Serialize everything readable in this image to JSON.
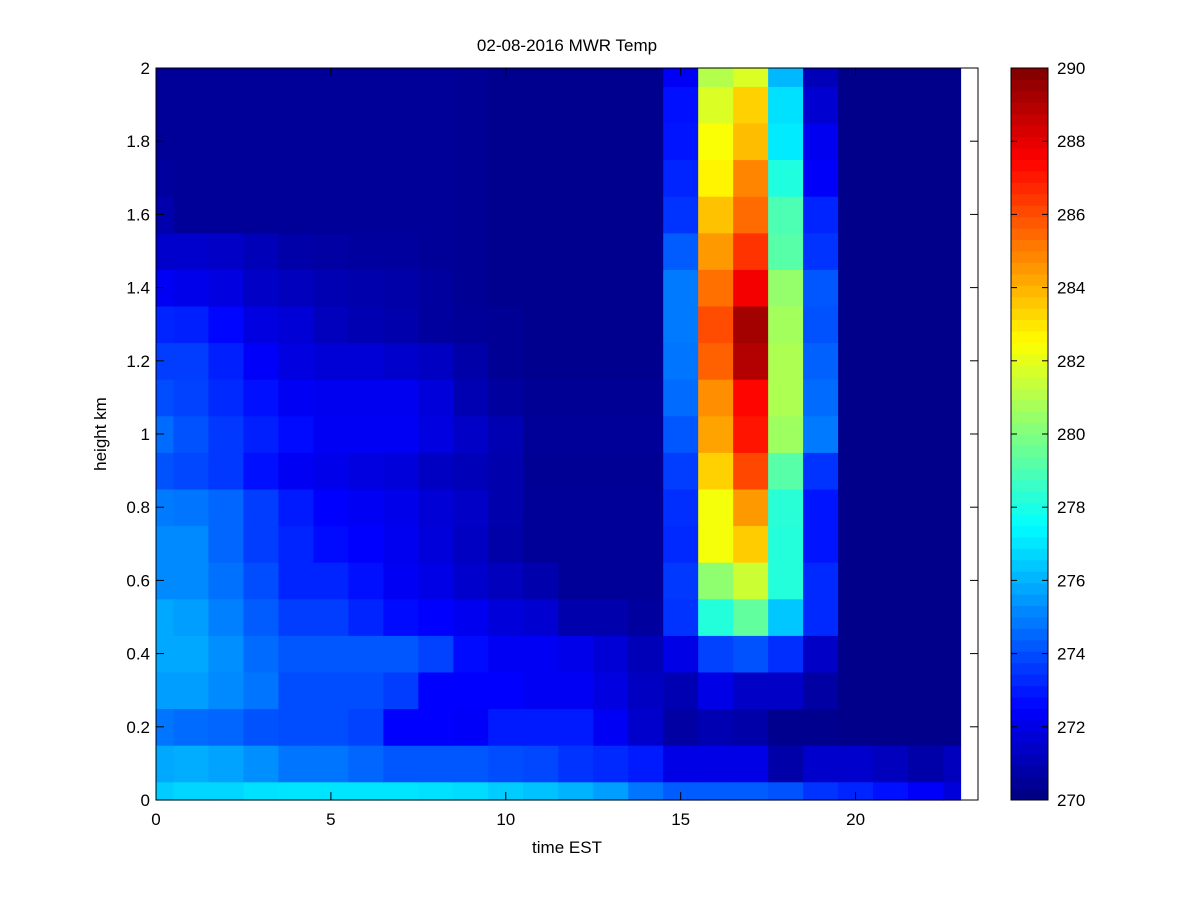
{
  "chart_data": {
    "type": "heatmap",
    "title": "02-08-2016 MWR Temp",
    "xlabel": "time EST",
    "ylabel": "height km",
    "xlim": [
      0,
      23.5
    ],
    "ylim": [
      0,
      2
    ],
    "xticks": [
      0,
      5,
      10,
      15,
      20
    ],
    "xtick_labels": [
      "0",
      "5",
      "10",
      "15",
      "20"
    ],
    "yticks": [
      0,
      0.2,
      0.4,
      0.6,
      0.8,
      1,
      1.2,
      1.4,
      1.6,
      1.8,
      2
    ],
    "ytick_labels": [
      "0",
      "0.2",
      "0.4",
      "0.6",
      "0.8",
      "1",
      "1.2",
      "1.4",
      "1.6",
      "1.8",
      "2"
    ],
    "colormap": "jet",
    "clim": [
      270,
      290
    ],
    "colorbar_ticks": [
      270,
      272,
      274,
      276,
      278,
      280,
      282,
      284,
      286,
      288,
      290
    ],
    "colorbar_tick_labels": [
      "270",
      "272",
      "274",
      "276",
      "278",
      "280",
      "282",
      "284",
      "286",
      "288",
      "290"
    ],
    "x_edges": [
      0,
      1,
      2,
      3,
      4,
      5,
      6,
      7,
      8,
      9,
      10,
      11,
      12,
      13,
      14,
      15,
      16,
      17,
      18,
      19,
      20,
      21,
      22,
      23,
      23.5
    ],
    "y_edges": [
      0,
      0.05,
      0.15,
      0.25,
      0.35,
      0.45,
      0.55,
      0.65,
      0.75,
      0.85,
      0.95,
      1.05,
      1.15,
      1.25,
      1.35,
      1.45,
      1.55,
      1.65,
      1.75,
      1.85,
      1.95,
      2.0
    ],
    "cell_x_offset": -0.5,
    "missing_columns_note": "",
    "values": [
      [
        276.5,
        276.7,
        276.7,
        276.9,
        277.0,
        277.0,
        277.0,
        277.0,
        276.9,
        276.8,
        276.5,
        276.3,
        276.0,
        275.6,
        274.8,
        274.3,
        274.3,
        274.3,
        274.1,
        273.5,
        273.2,
        272.8,
        272.4,
        271.8
      ],
      [
        275.8,
        275.9,
        275.7,
        275.3,
        274.8,
        274.8,
        274.5,
        274.2,
        274.2,
        274.2,
        274.0,
        273.9,
        273.5,
        273.3,
        273.0,
        272.0,
        272.0,
        272.0,
        270.8,
        271.5,
        271.5,
        271.2,
        270.8,
        271.2
      ],
      [
        274.8,
        274.6,
        274.5,
        274.1,
        274.0,
        274.0,
        273.8,
        272.5,
        272.5,
        272.4,
        273.0,
        273.0,
        273.0,
        272.3,
        271.5,
        270.7,
        271.0,
        270.8,
        270.3,
        270.3,
        270.2,
        270.2,
        270.2,
        270.2
      ],
      [
        275.6,
        275.6,
        275.2,
        274.8,
        274.0,
        274.0,
        274.0,
        273.7,
        272.5,
        272.5,
        272.5,
        272.3,
        272.3,
        271.9,
        271.3,
        271.0,
        272.0,
        271.4,
        271.4,
        270.7,
        270.2,
        270.2,
        270.2,
        270.2
      ],
      [
        275.8,
        275.8,
        275.3,
        274.6,
        274.2,
        274.2,
        274.2,
        274.2,
        273.8,
        272.7,
        272.3,
        272.3,
        272.1,
        271.7,
        271.1,
        272.0,
        273.8,
        274.1,
        273.4,
        271.4,
        270.2,
        270.2,
        270.2,
        270.2
      ],
      [
        275.8,
        275.6,
        275.0,
        274.3,
        273.7,
        273.7,
        273.2,
        272.7,
        272.5,
        272.2,
        271.8,
        271.6,
        270.9,
        270.9,
        270.6,
        273.5,
        278.2,
        279.4,
        276.4,
        273.3,
        270.2,
        270.2,
        270.2,
        270.2
      ],
      [
        275.2,
        275.2,
        274.7,
        274.0,
        273.2,
        273.2,
        272.8,
        272.3,
        272.0,
        271.5,
        271.2,
        270.9,
        270.5,
        270.5,
        270.5,
        273.6,
        280.3,
        281.5,
        278.2,
        273.3,
        270.2,
        270.2,
        270.2,
        270.2
      ],
      [
        275.2,
        275.2,
        274.5,
        273.7,
        273.2,
        272.7,
        272.5,
        272.2,
        271.8,
        271.3,
        270.8,
        270.5,
        270.5,
        270.5,
        270.5,
        273.3,
        282.3,
        283.5,
        278.2,
        272.9,
        270.2,
        270.2,
        270.2,
        270.2
      ],
      [
        274.9,
        274.8,
        274.5,
        273.7,
        273.0,
        272.5,
        272.3,
        272.1,
        271.7,
        271.4,
        270.9,
        270.5,
        270.5,
        270.5,
        270.5,
        273.4,
        282.3,
        284.5,
        278.3,
        272.9,
        270.2,
        270.2,
        270.2,
        270.2
      ],
      [
        274.1,
        273.9,
        273.6,
        272.8,
        272.3,
        272.1,
        271.9,
        271.8,
        271.3,
        271.1,
        270.9,
        270.4,
        270.4,
        270.4,
        270.4,
        273.7,
        283.4,
        286.1,
        279.2,
        273.5,
        270.2,
        270.2,
        270.2,
        270.2
      ],
      [
        274.6,
        274.1,
        273.6,
        273.1,
        272.7,
        272.3,
        272.3,
        272.3,
        271.9,
        271.4,
        271.0,
        270.5,
        270.5,
        270.5,
        270.5,
        274.2,
        284.3,
        287.1,
        280.6,
        274.9,
        270.2,
        270.2,
        270.2,
        270.2
      ],
      [
        274.0,
        273.8,
        273.3,
        272.8,
        272.3,
        272.2,
        272.2,
        272.2,
        271.8,
        271.0,
        270.6,
        270.4,
        270.4,
        270.4,
        270.4,
        274.6,
        284.7,
        287.4,
        280.9,
        274.6,
        270.2,
        270.2,
        270.2,
        270.2
      ],
      [
        273.7,
        273.7,
        273.1,
        272.4,
        271.9,
        271.7,
        271.7,
        271.5,
        271.3,
        270.8,
        270.4,
        270.3,
        270.3,
        270.3,
        270.3,
        274.8,
        285.6,
        289.0,
        280.9,
        274.4,
        270.2,
        270.2,
        270.2,
        270.2
      ],
      [
        273.2,
        273.1,
        272.6,
        271.9,
        271.7,
        271.2,
        271.0,
        270.9,
        270.6,
        270.5,
        270.4,
        270.3,
        270.3,
        270.3,
        270.3,
        274.9,
        286.0,
        289.3,
        280.7,
        274.1,
        270.2,
        270.2,
        270.2,
        270.2
      ],
      [
        272.3,
        272.1,
        271.9,
        271.4,
        271.2,
        271.0,
        270.9,
        270.8,
        270.6,
        270.4,
        270.3,
        270.3,
        270.3,
        270.3,
        270.3,
        274.9,
        285.3,
        287.7,
        280.4,
        274.2,
        270.2,
        270.2,
        270.2,
        270.2
      ],
      [
        271.5,
        271.5,
        271.4,
        271.1,
        270.8,
        270.7,
        270.6,
        270.6,
        270.5,
        270.4,
        270.3,
        270.3,
        270.3,
        270.3,
        270.3,
        274.3,
        284.5,
        286.5,
        279.2,
        273.5,
        270.2,
        270.2,
        270.2,
        270.2
      ],
      [
        270.9,
        270.5,
        270.5,
        270.5,
        270.5,
        270.5,
        270.5,
        270.5,
        270.5,
        270.4,
        270.3,
        270.3,
        270.3,
        270.3,
        270.3,
        273.5,
        283.7,
        285.4,
        279.0,
        273.2,
        270.2,
        270.2,
        270.2,
        270.2
      ],
      [
        270.6,
        270.5,
        270.5,
        270.5,
        270.5,
        270.5,
        270.5,
        270.5,
        270.5,
        270.4,
        270.3,
        270.3,
        270.3,
        270.3,
        270.3,
        273.2,
        282.7,
        284.9,
        278.1,
        272.4,
        270.2,
        270.2,
        270.2,
        270.2
      ],
      [
        270.5,
        270.5,
        270.5,
        270.5,
        270.5,
        270.5,
        270.5,
        270.5,
        270.5,
        270.4,
        270.3,
        270.3,
        270.3,
        270.3,
        270.3,
        272.9,
        282.4,
        283.8,
        277.1,
        272.2,
        270.2,
        270.2,
        270.2,
        270.2
      ],
      [
        270.5,
        270.5,
        270.5,
        270.5,
        270.5,
        270.5,
        270.5,
        270.5,
        270.5,
        270.4,
        270.3,
        270.3,
        270.3,
        270.3,
        270.3,
        272.8,
        281.8,
        283.4,
        276.9,
        271.6,
        270.2,
        270.2,
        270.2,
        270.2
      ],
      [
        270.5,
        270.5,
        270.5,
        270.5,
        270.5,
        270.5,
        270.5,
        270.5,
        270.5,
        270.4,
        270.3,
        270.3,
        270.3,
        270.3,
        270.3,
        272.3,
        281.0,
        281.8,
        276.1,
        271.1,
        270.2,
        270.2,
        270.2,
        270.2
      ]
    ]
  }
}
